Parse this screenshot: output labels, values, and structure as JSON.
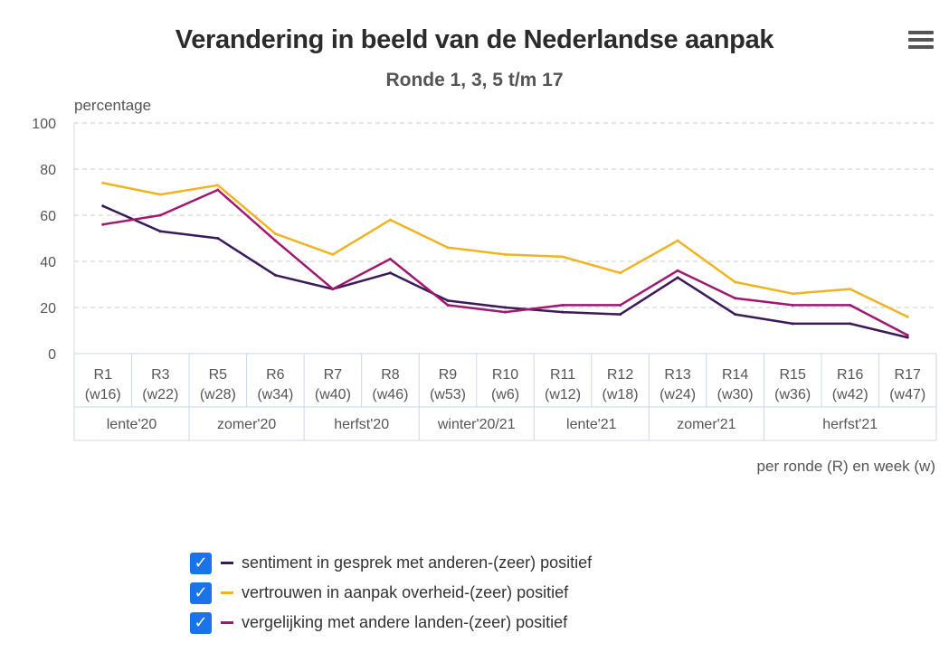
{
  "header": {
    "title": "Verandering in beeld van de Nederlandse aanpak",
    "subtitle": "Ronde 1, 3, 5 t/m 17",
    "menu_icon": "hamburger-menu-icon"
  },
  "chart_data": {
    "type": "line",
    "ylabel": "percentage",
    "xlabel": "per ronde (R) en week (w)",
    "ylim": [
      0,
      100
    ],
    "yticks": [
      "0",
      "20",
      "40",
      "60",
      "80",
      "100"
    ],
    "grid": true,
    "categories": [
      {
        "r": "R1",
        "w": "(w16)"
      },
      {
        "r": "R3",
        "w": "(w22)"
      },
      {
        "r": "R5",
        "w": "(w28)"
      },
      {
        "r": "R6",
        "w": "(w34)"
      },
      {
        "r": "R7",
        "w": "(w40)"
      },
      {
        "r": "R8",
        "w": "(w46)"
      },
      {
        "r": "R9",
        "w": "(w53)"
      },
      {
        "r": "R10",
        "w": "(w6)"
      },
      {
        "r": "R11",
        "w": "(w12)"
      },
      {
        "r": "R12",
        "w": "(w18)"
      },
      {
        "r": "R13",
        "w": "(w24)"
      },
      {
        "r": "R14",
        "w": "(w30)"
      },
      {
        "r": "R15",
        "w": "(w36)"
      },
      {
        "r": "R16",
        "w": "(w42)"
      },
      {
        "r": "R17",
        "w": "(w47)"
      }
    ],
    "seasons": [
      {
        "label": "lente'20",
        "count": 2
      },
      {
        "label": "zomer'20",
        "count": 2
      },
      {
        "label": "herfst'20",
        "count": 2
      },
      {
        "label": "winter'20/21",
        "count": 2
      },
      {
        "label": "lente'21",
        "count": 2
      },
      {
        "label": "zomer'21",
        "count": 2
      },
      {
        "label": "herfst'21",
        "count": 3
      }
    ],
    "series": [
      {
        "name": "sentiment in gesprek met anderen-(zeer) positief",
        "color": "#3b1a5a",
        "values": [
          64,
          53,
          50,
          34,
          28,
          35,
          23,
          20,
          18,
          17,
          33,
          17,
          13,
          13,
          7
        ]
      },
      {
        "name": "vertrouwen in aanpak overheid-(zeer) positief",
        "color": "#f0b323",
        "values": [
          74,
          69,
          73,
          52,
          43,
          58,
          46,
          43,
          42,
          35,
          49,
          31,
          26,
          28,
          16
        ]
      },
      {
        "name": "vergelijking met andere landen-(zeer) positief",
        "color": "#a0186f",
        "values": [
          56,
          60,
          71,
          49,
          28,
          41,
          21,
          18,
          21,
          21,
          36,
          24,
          21,
          21,
          8
        ]
      }
    ],
    "legend_position": "bottom-left"
  },
  "legend": {
    "check_glyph": "✓"
  }
}
